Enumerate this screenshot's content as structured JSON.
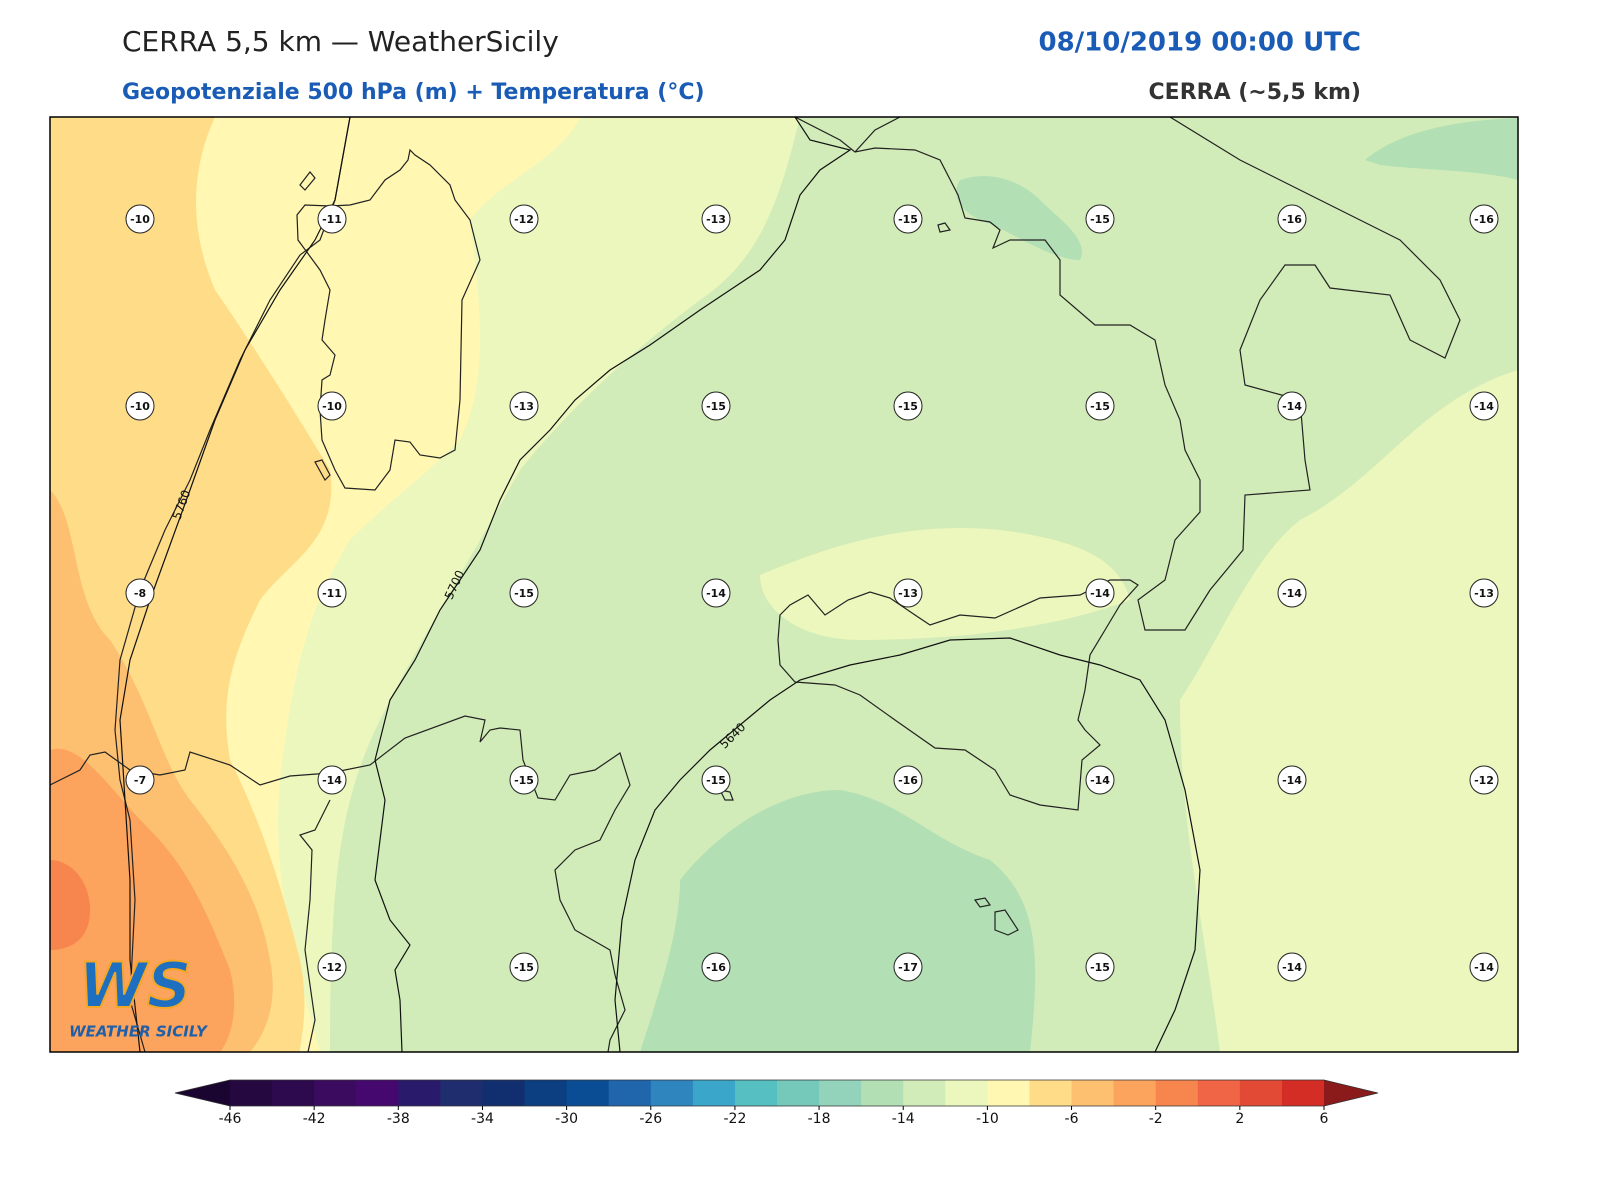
{
  "header": {
    "title": "CERRA 5,5 km — WeatherSicily",
    "datetime": "08/10/2019 00:00 UTC",
    "subtitle": "Geopotenziale 500 hPa (m) + Temperatura (°C)",
    "source": "CERRA (~5,5 km)"
  },
  "map": {
    "temperature_grid": [
      [
        -10,
        -11,
        -12,
        -13,
        -15,
        -15,
        -16,
        -16
      ],
      [
        -10,
        -10,
        -13,
        -15,
        -15,
        -15,
        -14,
        -14
      ],
      [
        -8,
        -11,
        -15,
        -14,
        -13,
        -14,
        -14,
        -13
      ],
      [
        -7,
        -14,
        -15,
        -15,
        -16,
        -14,
        -14,
        -12
      ],
      [
        null,
        -12,
        -15,
        -16,
        -17,
        -15,
        -14,
        -14
      ]
    ],
    "contour_labels": [
      "5760",
      "5700",
      "5640"
    ]
  },
  "colorbar": {
    "lim": [
      -46,
      6
    ],
    "ticks": [
      -46,
      -42,
      -38,
      -34,
      -30,
      -26,
      -22,
      -18,
      -14,
      -10,
      -6,
      -2,
      2,
      6
    ],
    "colors": [
      "#25083f",
      "#2d0a4e",
      "#3a0b5e",
      "#45086f",
      "#2a1a6b",
      "#1f2d6e",
      "#112f6e",
      "#0b3f82",
      "#0b4d94",
      "#1f66ad",
      "#2f86be",
      "#3aa6c9",
      "#55bfc2",
      "#74c9bb",
      "#93d3bb",
      "#b2dfb4",
      "#d1ecb8",
      "#ecf7bd",
      "#fff7b2",
      "#fedc88",
      "#fdbf70",
      "#fca35d",
      "#f7854e",
      "#ef6545",
      "#e34a36",
      "#d42d26"
    ],
    "extend_colors": [
      "#1a0530",
      "#8b1a1a"
    ]
  },
  "logo": {
    "mark": "WS",
    "name": "WEATHER SICILY"
  }
}
